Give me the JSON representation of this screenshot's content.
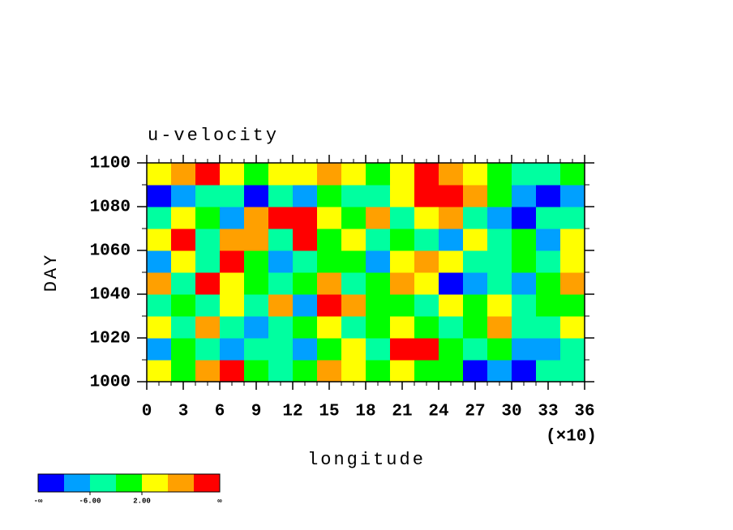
{
  "chart_data": {
    "type": "contour",
    "title": "u-velocity",
    "xlabel": "longitude",
    "ylabel": "DAY",
    "x_scale_label": "(×10)",
    "xlim": [
      0,
      36
    ],
    "xticks": [
      0,
      3,
      6,
      9,
      12,
      15,
      18,
      21,
      24,
      27,
      30,
      33,
      36
    ],
    "ylim": [
      1000,
      1100
    ],
    "yticks": [
      1000,
      1020,
      1040,
      1060,
      1080,
      1100
    ],
    "x": [
      1,
      3,
      5,
      7,
      9,
      11,
      13,
      15,
      17,
      19,
      21,
      23,
      25,
      27,
      29,
      31,
      33,
      35
    ],
    "y": [
      1005,
      1015,
      1025,
      1035,
      1045,
      1055,
      1065,
      1075,
      1085,
      1095
    ],
    "z": [
      [
        2,
        0,
        8,
        12,
        0,
        -4,
        -2,
        8,
        4,
        0,
        4,
        -2,
        0,
        -12,
        -8,
        -12,
        -4,
        -6
      ],
      [
        -8,
        0,
        -4,
        -8,
        -6,
        -4,
        -8,
        0,
        4,
        -4,
        12,
        10,
        -2,
        -4,
        0,
        -8,
        -10,
        -6
      ],
      [
        4,
        -4,
        8,
        -4,
        -8,
        -6,
        0,
        2,
        -4,
        -2,
        4,
        0,
        -4,
        0,
        6,
        -4,
        -6,
        4
      ],
      [
        -6,
        0,
        -4,
        4,
        -4,
        8,
        -8,
        10,
        6,
        0,
        0,
        -4,
        2,
        -2,
        4,
        -4,
        -2,
        0
      ],
      [
        8,
        -4,
        12,
        4,
        -2,
        -4,
        0,
        8,
        -4,
        -2,
        6,
        4,
        -12,
        -10,
        -4,
        -8,
        0,
        6
      ],
      [
        -8,
        4,
        -4,
        12,
        0,
        -8,
        -4,
        -2,
        0,
        -10,
        4,
        8,
        4,
        -4,
        -6,
        0,
        -4,
        2
      ],
      [
        4,
        12,
        -4,
        8,
        6,
        -4,
        10,
        0,
        4,
        -6,
        0,
        -4,
        -8,
        2,
        -4,
        0,
        -8,
        4
      ],
      [
        -4,
        4,
        0,
        -8,
        8,
        12,
        12,
        4,
        -2,
        8,
        -4,
        2,
        8,
        -4,
        -8,
        -12,
        -4,
        -4
      ],
      [
        -12,
        -8,
        -6,
        -4,
        -12,
        -4,
        -8,
        0,
        -4,
        -4,
        4,
        12,
        12,
        8,
        0,
        -8,
        -12,
        -10
      ],
      [
        4,
        8,
        12,
        4,
        0,
        4,
        2,
        8,
        4,
        0,
        4,
        12,
        8,
        4,
        0,
        -6,
        -4,
        0
      ]
    ],
    "levels": [
      -10,
      -6,
      -2,
      2,
      6,
      10
    ],
    "colors": [
      "#0000ff",
      "#00a0ff",
      "#00ffa0",
      "#00ff00",
      "#ffff00",
      "#ffa000",
      "#ff0000"
    ],
    "colorbar_ticks": [
      {
        "value": -6,
        "label": "-6.00"
      },
      {
        "value": 2,
        "label": "2.00"
      }
    ],
    "colorbar_low_label": "-∞",
    "colorbar_high_label": "∞"
  }
}
